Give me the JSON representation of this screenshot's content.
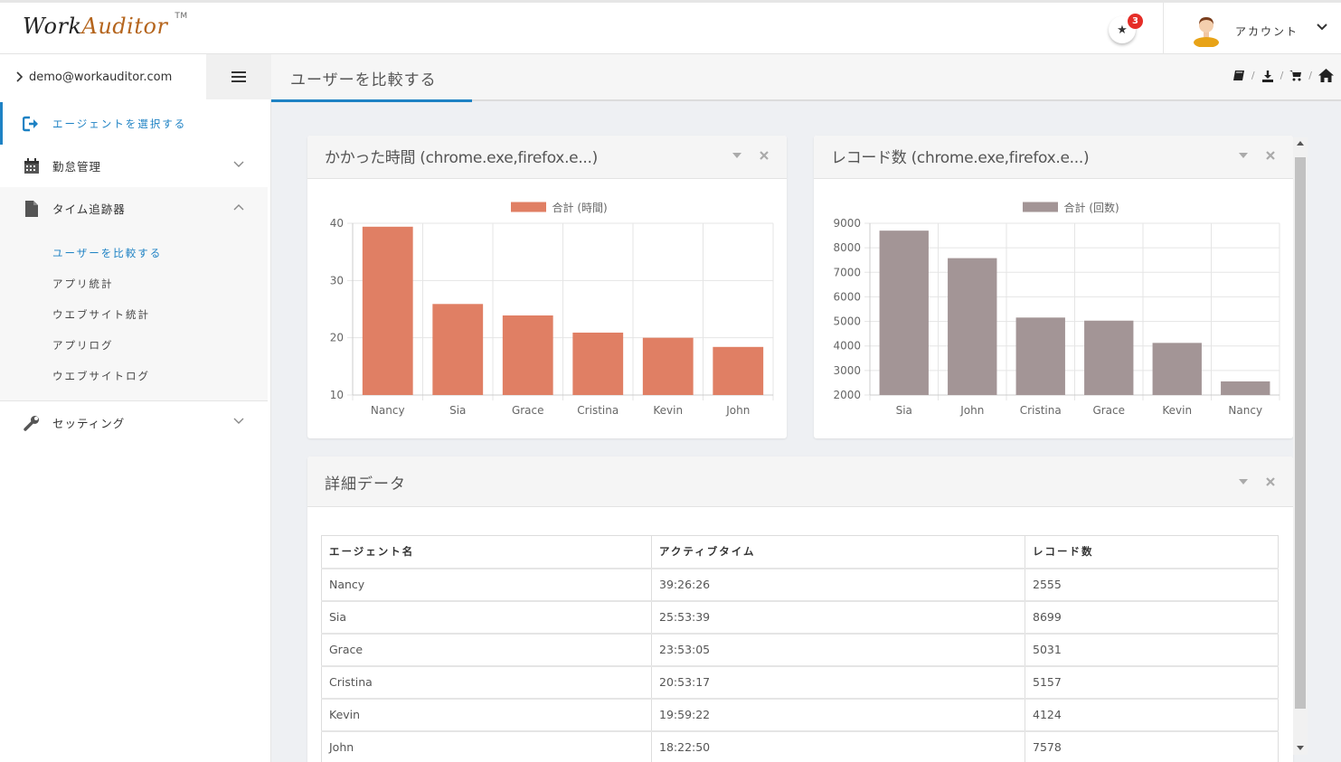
{
  "app": {
    "logo_part1": "Work",
    "logo_part2": "Auditor",
    "logo_tm": "TM",
    "notification_count": "3",
    "account_label": "アカウント"
  },
  "sidebar": {
    "user_email": "demo@workauditor.com",
    "items": [
      {
        "label": "エージェントを選択する",
        "icon": "sign-in-icon",
        "active": true
      },
      {
        "label": "勤怠管理",
        "icon": "calendar-icon",
        "caret": "down"
      },
      {
        "label": "タイム追跡器",
        "icon": "file-icon",
        "caret": "up"
      },
      {
        "label": "セッティング",
        "icon": "wrench-icon",
        "caret": "down"
      }
    ],
    "submenu": [
      {
        "label": "ユーザーを比較する",
        "active": true
      },
      {
        "label": "アプリ統計"
      },
      {
        "label": "ウエブサイト統計"
      },
      {
        "label": "アプリログ"
      },
      {
        "label": "ウエブサイトログ"
      }
    ]
  },
  "page": {
    "title": "ユーザーを比較する",
    "header_icons": [
      "book-icon",
      "download-icon",
      "cart-icon",
      "home-icon"
    ]
  },
  "chart_data": [
    {
      "type": "bar",
      "title": "かかった時間 (chrome.exe,firefox.e...)",
      "categories": [
        "Nancy",
        "Sia",
        "Grace",
        "Cristina",
        "Kevin",
        "John"
      ],
      "series": [
        {
          "name": "合計 (時間)",
          "values": [
            39.4,
            25.9,
            23.9,
            20.9,
            20.0,
            18.4
          ],
          "color": "#e07f64"
        }
      ],
      "ylim": [
        10,
        40
      ],
      "yticks": [
        10,
        20,
        30,
        40
      ],
      "grid": true,
      "legend": "top"
    },
    {
      "type": "bar",
      "title": "レコード数 (chrome.exe,firefox.e...)",
      "categories": [
        "Sia",
        "John",
        "Cristina",
        "Grace",
        "Kevin",
        "Nancy"
      ],
      "series": [
        {
          "name": "合計 (回数)",
          "values": [
            8699,
            7578,
            5157,
            5031,
            4124,
            2555
          ],
          "color": "#a39596"
        }
      ],
      "ylim": [
        2000,
        9000
      ],
      "yticks": [
        2000,
        3000,
        4000,
        5000,
        6000,
        7000,
        8000,
        9000
      ],
      "grid": true,
      "legend": "top"
    }
  ],
  "detail": {
    "title": "詳細データ",
    "columns": [
      "エージェント名",
      "アクティブタイム",
      "レコード数"
    ],
    "rows": [
      [
        "Nancy",
        "39:26:26",
        "2555"
      ],
      [
        "Sia",
        "25:53:39",
        "8699"
      ],
      [
        "Grace",
        "23:53:05",
        "5031"
      ],
      [
        "Cristina",
        "20:53:17",
        "5157"
      ],
      [
        "Kevin",
        "19:59:22",
        "4124"
      ],
      [
        "John",
        "18:22:50",
        "7578"
      ]
    ]
  }
}
